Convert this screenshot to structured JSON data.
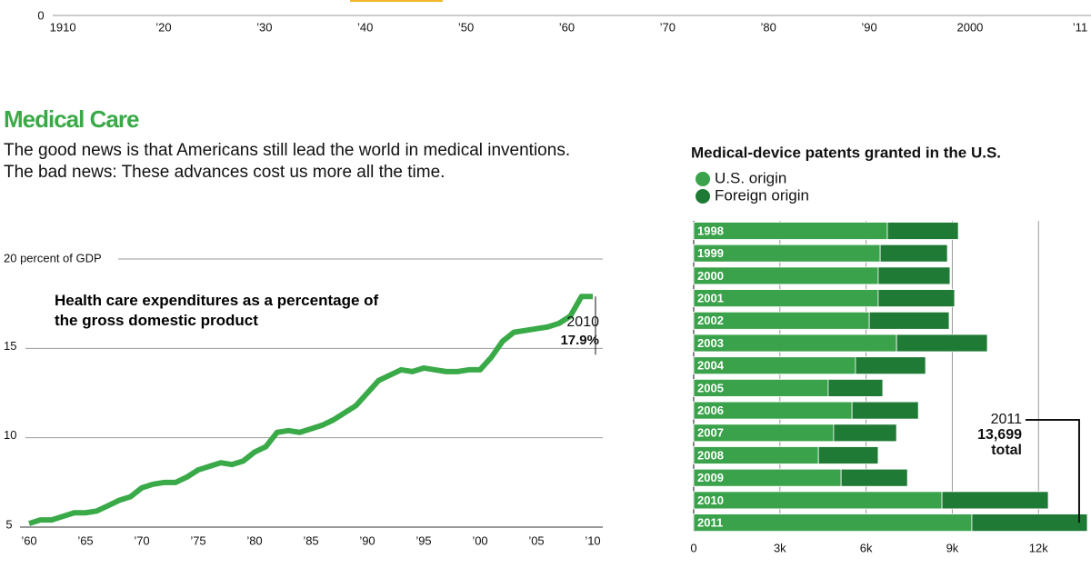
{
  "header": {
    "title": "Medical Care",
    "intro": [
      "The good news is that Americans still lead the world in medical inventions.",
      "The bad news: These advances cost us more all the time."
    ]
  },
  "chart_data": [
    {
      "type": "axis",
      "xlim": [
        1909,
        2012
      ],
      "xticks": [
        1910,
        {
          "value": 1920,
          "label": "’20"
        },
        {
          "value": 1930,
          "label": "’30"
        },
        {
          "value": 1940,
          "label": "’40"
        },
        {
          "value": 1950,
          "label": "’50"
        },
        {
          "value": 1960,
          "label": "’60"
        },
        {
          "value": 1970,
          "label": "’70"
        },
        {
          "value": 1980,
          "label": "’80"
        },
        {
          "value": 1990,
          "label": "’90"
        },
        2000,
        {
          "value": 2011,
          "label": "’11"
        }
      ],
      "yticks": [
        0
      ]
    },
    {
      "type": "line",
      "title": "Health care expenditures as a percentage of the gross domestic product",
      "x": [
        1960,
        1961,
        1962,
        1963,
        1964,
        1965,
        1966,
        1967,
        1968,
        1969,
        1970,
        1971,
        1972,
        1973,
        1974,
        1975,
        1976,
        1977,
        1978,
        1979,
        1980,
        1981,
        1982,
        1983,
        1984,
        1985,
        1986,
        1987,
        1988,
        1989,
        1990,
        1991,
        1992,
        1993,
        1994,
        1995,
        1996,
        1997,
        1998,
        1999,
        2000,
        2001,
        2002,
        2003,
        2004,
        2005,
        2006,
        2007,
        2008,
        2009,
        2010
      ],
      "series": [
        {
          "color": "#3aaa48",
          "values": [
            5.2,
            5.4,
            5.4,
            5.6,
            5.8,
            5.8,
            5.9,
            6.2,
            6.5,
            6.7,
            7.2,
            7.4,
            7.5,
            7.5,
            7.8,
            8.2,
            8.4,
            8.6,
            8.5,
            8.7,
            9.2,
            9.5,
            10.3,
            10.4,
            10.3,
            10.5,
            10.7,
            11.0,
            11.4,
            11.8,
            12.5,
            13.2,
            13.5,
            13.8,
            13.7,
            13.9,
            13.8,
            13.7,
            13.7,
            13.8,
            13.8,
            14.5,
            15.4,
            15.9,
            16.0,
            16.1,
            16.2,
            16.4,
            16.8,
            17.9,
            17.9
          ]
        }
      ],
      "xlim": [
        1960,
        2010
      ],
      "xticks": [
        {
          "value": 1960,
          "label": "’60"
        },
        {
          "value": 1965,
          "label": "’65"
        },
        {
          "value": 1970,
          "label": "’70"
        },
        {
          "value": 1975,
          "label": "’75"
        },
        {
          "value": 1980,
          "label": "’80"
        },
        {
          "value": 1985,
          "label": "’85"
        },
        {
          "value": 1990,
          "label": "’90"
        },
        {
          "value": 1995,
          "label": "’95"
        },
        {
          "value": 2000,
          "label": "’00"
        },
        {
          "value": 2005,
          "label": "’05"
        },
        {
          "value": 2010,
          "label": "’10"
        }
      ],
      "ylim": [
        5,
        20
      ],
      "yticks": [
        5,
        10,
        15,
        {
          "value": 20,
          "label": "20 percent of GDP"
        }
      ],
      "grid": true,
      "annotations": [
        {
          "text": "2010",
          "value_label": "17.9%",
          "x": 2010,
          "y": 17.9
        }
      ]
    },
    {
      "type": "bar",
      "orientation": "horizontal",
      "stacked": true,
      "title": "Medical-device patents granted in the U.S.",
      "categories": [
        "1998",
        "1999",
        "2000",
        "2001",
        "2002",
        "2003",
        "2004",
        "2005",
        "2006",
        "2007",
        "2008",
        "2009",
        "2010",
        "2011"
      ],
      "series": [
        {
          "name": "U.S. origin",
          "color": "#3aa24a",
          "values": [
            6740,
            6490,
            6420,
            6420,
            6110,
            7060,
            5630,
            4680,
            5510,
            4870,
            4340,
            5130,
            8640,
            9680
          ]
        },
        {
          "name": "Foreign origin",
          "color": "#1f7a35",
          "values": [
            2470,
            2340,
            2500,
            2660,
            2780,
            3160,
            2440,
            1900,
            2310,
            2190,
            2080,
            2310,
            3700,
            4019
          ]
        }
      ],
      "xlim": [
        0,
        13700
      ],
      "xticks": [
        0,
        {
          "value": 3000,
          "label": "3k"
        },
        {
          "value": 6000,
          "label": "6k"
        },
        {
          "value": 9000,
          "label": "9k"
        },
        {
          "value": 12000,
          "label": "12k"
        }
      ],
      "grid": true,
      "annotations": [
        {
          "text": "2011",
          "value_label": "13,699",
          "value": 13699,
          "note": "total"
        }
      ]
    }
  ]
}
